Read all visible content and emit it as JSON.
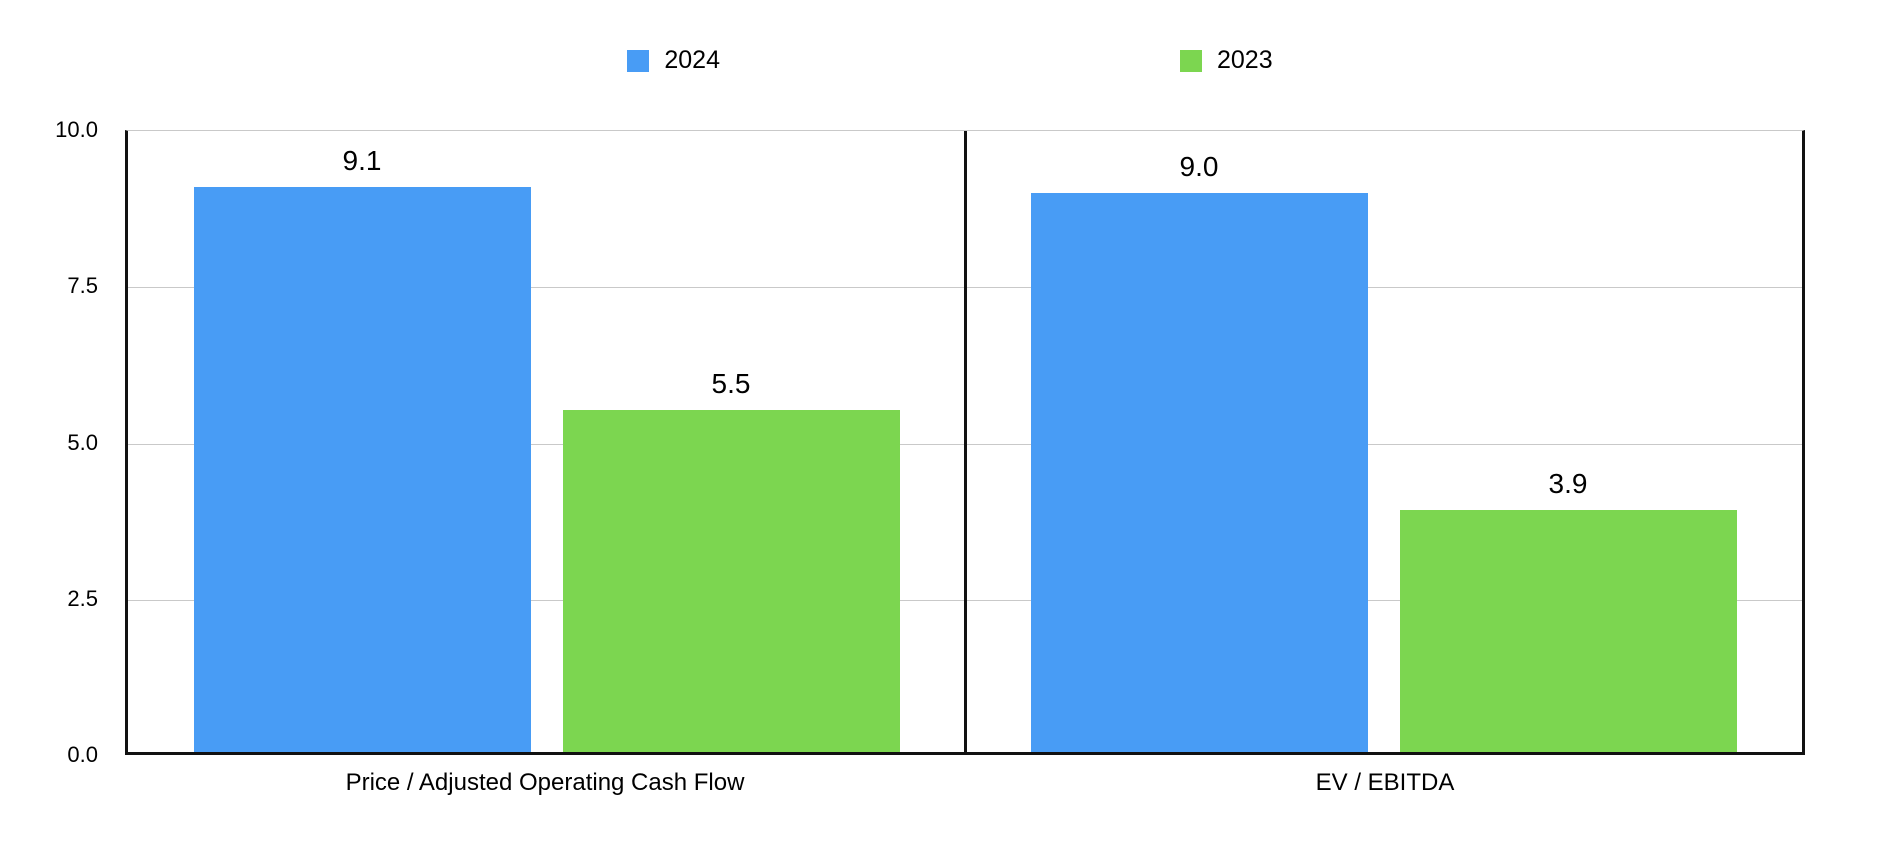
{
  "legend": {
    "items": [
      {
        "label": "2024",
        "color": "#489CF5"
      },
      {
        "label": "2023",
        "color": "#7CD650"
      }
    ]
  },
  "chart_data": {
    "type": "bar",
    "title": "",
    "xlabel": "",
    "ylabel": "",
    "categories": [
      "Price / Adjusted Operating Cash Flow",
      "EV / EBITDA"
    ],
    "series": [
      {
        "name": "2024",
        "color": "#489CF5",
        "values": [
          9.1,
          9.0
        ]
      },
      {
        "name": "2023",
        "color": "#7CD650",
        "values": [
          5.5,
          3.9
        ]
      }
    ],
    "value_labels": [
      [
        "9.1",
        "9.0"
      ],
      [
        "5.5",
        "3.9"
      ]
    ],
    "ylim": [
      0,
      10
    ],
    "yticks": [
      "0.0",
      "2.5",
      "5.0",
      "7.5",
      "10.0"
    ],
    "grid": true,
    "legend_position": "top"
  },
  "colors": {
    "axis": "#111111",
    "gridline": "#c9c9c9",
    "text": "#000000",
    "background": "#ffffff"
  }
}
